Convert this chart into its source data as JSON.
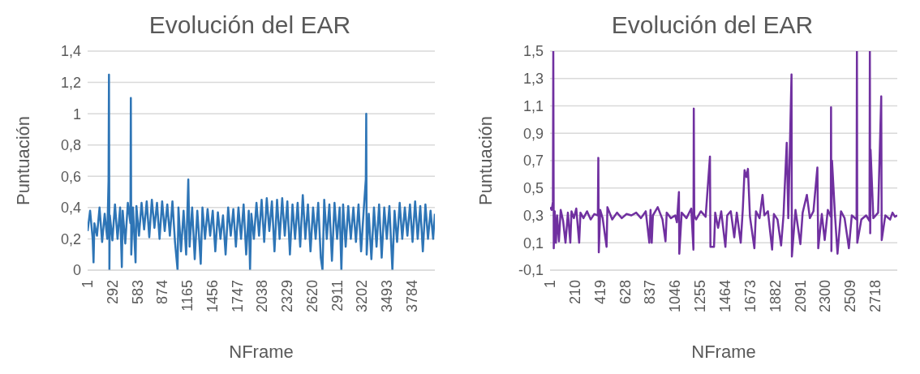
{
  "chart_data": [
    {
      "type": "line",
      "title": "Evolución del EAR",
      "xlabel": "NFrame",
      "ylabel": "Puntuación",
      "grid": "y",
      "xlim": [
        1,
        4050
      ],
      "xticks": [
        1,
        292,
        583,
        874,
        1165,
        1456,
        1747,
        2038,
        2329,
        2620,
        2911,
        3202,
        3493,
        3784
      ],
      "ylim": [
        0,
        1.4
      ],
      "yticks": [
        0,
        {
          "value": 0.2,
          "label": "0,2"
        },
        {
          "value": 0.4,
          "label": "0,4"
        },
        {
          "value": 0.6,
          "label": "0,6"
        },
        {
          "value": 0.8,
          "label": "0,8"
        },
        1,
        {
          "value": 1.2,
          "label": "1,2"
        },
        {
          "value": 1.4,
          "label": "1,4"
        }
      ],
      "series": [
        {
          "color": "#2e75b6",
          "x": [
            1,
            30,
            60,
            70,
            80,
            110,
            140,
            170,
            200,
            230,
            245,
            250,
            255,
            260,
            290,
            320,
            350,
            380,
            400,
            410,
            440,
            470,
            500,
            505,
            510,
            530,
            560,
            570,
            600,
            630,
            660,
            690,
            720,
            750,
            780,
            810,
            840,
            870,
            900,
            930,
            960,
            990,
            1020,
            1050,
            1060,
            1090,
            1120,
            1150,
            1175,
            1190,
            1220,
            1250,
            1280,
            1300,
            1320,
            1340,
            1370,
            1400,
            1430,
            1460,
            1490,
            1520,
            1550,
            1580,
            1610,
            1640,
            1670,
            1700,
            1730,
            1760,
            1790,
            1820,
            1850,
            1880,
            1895,
            1910,
            1940,
            1970,
            2000,
            2030,
            2060,
            2090,
            2120,
            2150,
            2180,
            2210,
            2240,
            2270,
            2300,
            2330,
            2360,
            2390,
            2420,
            2450,
            2480,
            2510,
            2540,
            2570,
            2600,
            2630,
            2660,
            2690,
            2720,
            2740,
            2760,
            2790,
            2820,
            2850,
            2880,
            2910,
            2940,
            2960,
            2980,
            3010,
            3040,
            3070,
            3100,
            3130,
            3160,
            3190,
            3220,
            3245,
            3250,
            3255,
            3280,
            3310,
            3340,
            3370,
            3400,
            3430,
            3460,
            3490,
            3520,
            3555,
            3580,
            3610,
            3640,
            3670,
            3700,
            3730,
            3760,
            3790,
            3820,
            3850,
            3880,
            3910,
            3940,
            3970,
            4000,
            4030,
            4050
          ],
          "values": [
            0.25,
            0.38,
            0.2,
            0.05,
            0.3,
            0.22,
            0.4,
            0.18,
            0.36,
            0.2,
            0.57,
            1.25,
            0,
            0.35,
            0.19,
            0.42,
            0.2,
            0.4,
            0.02,
            0.38,
            0.17,
            0.43,
            0.3,
            1.1,
            0.1,
            0.4,
            0.05,
            0.41,
            0.22,
            0.43,
            0.26,
            0.44,
            0.21,
            0.45,
            0.27,
            0.43,
            0.2,
            0.44,
            0.25,
            0.42,
            0.22,
            0.44,
            0.18,
            0,
            0.4,
            0.12,
            0.38,
            0.1,
            0.58,
            0.15,
            0.4,
            0.07,
            0.38,
            0.22,
            0.04,
            0.4,
            0.2,
            0.39,
            0.22,
            0.38,
            0.12,
            0.37,
            0.2,
            0.35,
            0.1,
            0.4,
            0.22,
            0.39,
            0.15,
            0.4,
            0.2,
            0.42,
            0.1,
            0.38,
            0,
            0.36,
            0.2,
            0.43,
            0.22,
            0.45,
            0.18,
            0.46,
            0.25,
            0.44,
            0.12,
            0.45,
            0.2,
            0.46,
            0.22,
            0.44,
            0.1,
            0.42,
            0.2,
            0.43,
            0.15,
            0.48,
            0.2,
            0.42,
            0.12,
            0.4,
            0.2,
            0.43,
            0.08,
            0,
            0.45,
            0.2,
            0.42,
            0.06,
            0.43,
            0.2,
            0.4,
            0,
            0.42,
            0.15,
            0.41,
            0.2,
            0.4,
            0.18,
            0.42,
            0.12,
            0.38,
            0.58,
            1,
            0.1,
            0.36,
            0.07,
            0.4,
            0.15,
            0.42,
            0.08,
            0.4,
            0.2,
            0.41,
            0,
            0.38,
            0.18,
            0.43,
            0.2,
            0.4,
            0.22,
            0.42,
            0.18,
            0.44,
            0.2,
            0.41,
            0.12,
            0.42,
            0.2,
            0.38,
            0.2,
            0.36
          ]
        }
      ]
    },
    {
      "type": "line",
      "title": "Evolución del EAR",
      "xlabel": "NFrame",
      "ylabel": "Puntuación",
      "grid": "y",
      "xlim": [
        1,
        2900
      ],
      "xticks": [
        1,
        210,
        419,
        628,
        837,
        1046,
        1255,
        1464,
        1673,
        1882,
        2091,
        2300,
        2509,
        2718
      ],
      "ylim": [
        -0.1,
        1.5
      ],
      "yticks": [
        {
          "value": -0.1,
          "label": "-0,1"
        },
        {
          "value": 0.1,
          "label": "0,1"
        },
        {
          "value": 0.3,
          "label": "0,3"
        },
        {
          "value": 0.5,
          "label": "0,5"
        },
        {
          "value": 0.7,
          "label": "0,7"
        },
        {
          "value": 0.9,
          "label": "0,9"
        },
        {
          "value": 1.1,
          "label": "1,1"
        },
        {
          "value": 1.3,
          "label": "1,3"
        },
        {
          "value": 1.5,
          "label": "1,5"
        }
      ],
      "series": [
        {
          "color": "#7030a0",
          "x": [
            1,
            15,
            25,
            28,
            32,
            40,
            50,
            60,
            75,
            90,
            110,
            130,
            150,
            170,
            180,
            200,
            220,
            244,
            255,
            280,
            310,
            340,
            370,
            400,
            404,
            408,
            420,
            440,
            473,
            480,
            520,
            560,
            600,
            640,
            680,
            720,
            760,
            800,
            830,
            840,
            850,
            860,
            900,
            940,
            965,
            975,
            1010,
            1046,
            1060,
            1077,
            1080,
            1100,
            1140,
            1180,
            1198,
            1201,
            1205,
            1220,
            1260,
            1300,
            1336,
            1340,
            1370,
            1380,
            1404,
            1430,
            1465,
            1480,
            1510,
            1539,
            1560,
            1593,
            1610,
            1625,
            1640,
            1653,
            1670,
            1707,
            1720,
            1750,
            1775,
            1790,
            1820,
            1855,
            1870,
            1900,
            1930,
            1950,
            1977,
            1990,
            2017,
            2020,
            2050,
            2091,
            2110,
            2145,
            2170,
            2200,
            2233,
            2240,
            2270,
            2294,
            2320,
            2345,
            2347,
            2350,
            2355,
            2380,
            2401,
            2430,
            2460,
            2496,
            2520,
            2560,
            2563,
            2566,
            2600,
            2640,
            2668,
            2671,
            2674,
            2677,
            2700,
            2740,
            2766,
            2770,
            2800,
            2840,
            2860,
            2880,
            2900
          ],
          "values": [
            0.36,
            0.34,
            0.4,
            1.5,
            0.06,
            0.33,
            0.1,
            0.3,
            0.11,
            0.34,
            0.26,
            0.1,
            0.32,
            0.1,
            0.33,
            0.28,
            0.35,
            0.1,
            0.32,
            0.28,
            0.33,
            0.27,
            0.31,
            0.3,
            0.72,
            0.03,
            0.34,
            0.28,
            0.07,
            0.36,
            0.27,
            0.32,
            0.28,
            0.31,
            0.3,
            0.32,
            0.28,
            0.33,
            0.1,
            0.34,
            0.1,
            0.3,
            0.36,
            0.27,
            0.11,
            0.32,
            0.28,
            0.3,
            0.25,
            0.47,
            0.02,
            0.32,
            0.28,
            0.35,
            0.05,
            1.08,
            0.3,
            0.27,
            0.33,
            0.29,
            0.73,
            0.07,
            0.07,
            0.32,
            0.21,
            0.33,
            0.07,
            0.3,
            0.33,
            0.14,
            0.32,
            0.1,
            0.34,
            0.63,
            0.58,
            0.64,
            0.29,
            0.06,
            0.33,
            0.28,
            0.45,
            0.3,
            0.33,
            0.05,
            0.31,
            0.27,
            0.08,
            0.3,
            0.83,
            0.28,
            1.33,
            0,
            0.34,
            0.09,
            0.32,
            0.45,
            0.28,
            0.33,
            0.65,
            0.06,
            0.31,
            0.12,
            0.34,
            0.29,
            1.09,
            0.04,
            0.7,
            0.3,
            0.02,
            0.33,
            0.28,
            0.06,
            0.3,
            0.27,
            1.5,
            0.1,
            0.27,
            0.3,
            0.26,
            1.5,
            0.17,
            0.78,
            0.28,
            0.32,
            1.17,
            0.12,
            0.3,
            0.27,
            0.32,
            0.29,
            0.3
          ]
        }
      ]
    }
  ]
}
